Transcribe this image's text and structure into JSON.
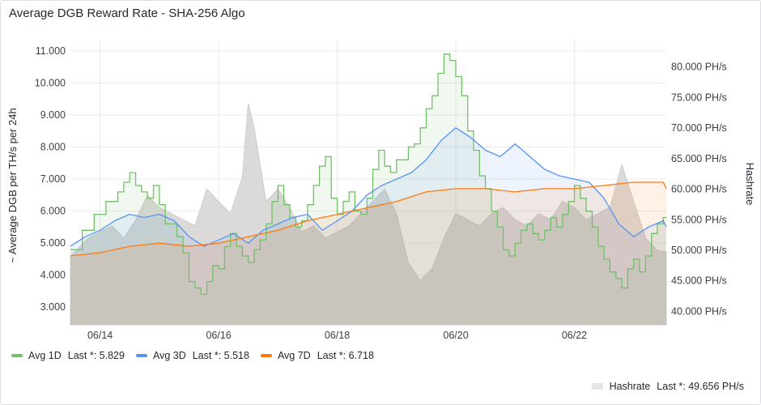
{
  "panel": {
    "title": "Average DGB Reward Rate - SHA-256 Algo"
  },
  "chart_data": {
    "type": "line",
    "title": "Average DGB Reward Rate - SHA-256 Algo",
    "ylabel": "~ Average DGB per TH/s per 24h",
    "y2label": "Hashrate",
    "xlim": [
      0,
      10.05
    ],
    "ylim": [
      2.45,
      11.3
    ],
    "y2lim": [
      37.8,
      84.2
    ],
    "x_ticks": [
      {
        "x": 0.5,
        "label": "06/14"
      },
      {
        "x": 2.5,
        "label": "06/16"
      },
      {
        "x": 4.5,
        "label": "06/18"
      },
      {
        "x": 6.5,
        "label": "06/20"
      },
      {
        "x": 8.5,
        "label": "06/22"
      }
    ],
    "y_ticks": [
      "3.000",
      "4.000",
      "5.000",
      "6.000",
      "7.000",
      "8.000",
      "9.000",
      "10.000",
      "11.000"
    ],
    "y2_ticks": [
      "40.000 PH/s",
      "45.000 PH/s",
      "50.000 PH/s",
      "55.000 PH/s",
      "60.000 PH/s",
      "65.000 PH/s",
      "70.000 PH/s",
      "75.000 PH/s",
      "80.000 PH/s"
    ],
    "x_unit": "days since 06/13 12:00",
    "series": [
      {
        "name": "Avg 1D",
        "axis": "left",
        "color": "#73bf69",
        "x": [
          0.0,
          0.2,
          0.4,
          0.6,
          0.8,
          0.9,
          1.0,
          1.1,
          1.2,
          1.3,
          1.4,
          1.5,
          1.6,
          1.7,
          1.8,
          1.9,
          2.0,
          2.1,
          2.2,
          2.3,
          2.4,
          2.5,
          2.6,
          2.7,
          2.8,
          2.9,
          3.0,
          3.1,
          3.2,
          3.3,
          3.4,
          3.5,
          3.6,
          3.7,
          3.8,
          3.9,
          4.0,
          4.1,
          4.2,
          4.3,
          4.4,
          4.5,
          4.6,
          4.7,
          4.8,
          4.9,
          5.0,
          5.1,
          5.2,
          5.3,
          5.4,
          5.5,
          5.6,
          5.7,
          5.8,
          5.9,
          6.0,
          6.1,
          6.2,
          6.3,
          6.4,
          6.5,
          6.6,
          6.7,
          6.8,
          6.9,
          7.0,
          7.1,
          7.2,
          7.3,
          7.4,
          7.5,
          7.6,
          7.7,
          7.8,
          7.9,
          8.0,
          8.1,
          8.2,
          8.3,
          8.4,
          8.5,
          8.6,
          8.7,
          8.8,
          8.9,
          9.0,
          9.1,
          9.2,
          9.3,
          9.4,
          9.5,
          9.6,
          9.7,
          9.8,
          9.9,
          10.0,
          10.05
        ],
        "y": [
          4.8,
          5.4,
          5.9,
          6.3,
          6.6,
          6.9,
          7.2,
          6.8,
          6.6,
          6.4,
          6.8,
          6.2,
          5.6,
          5.6,
          5.2,
          4.7,
          3.8,
          3.6,
          3.4,
          3.8,
          4.3,
          4.2,
          4.9,
          5.3,
          4.9,
          4.6,
          4.4,
          4.8,
          5.1,
          5.6,
          6.3,
          6.8,
          6.2,
          5.8,
          5.5,
          5.7,
          6.2,
          6.8,
          7.4,
          7.7,
          6.4,
          5.9,
          6.3,
          6.6,
          6.0,
          5.9,
          6.4,
          7.3,
          7.9,
          7.4,
          7.2,
          7.6,
          7.6,
          8.0,
          8.1,
          8.6,
          9.2,
          9.6,
          10.3,
          10.9,
          10.7,
          10.2,
          9.6,
          8.5,
          7.9,
          7.1,
          6.7,
          6.0,
          5.5,
          4.8,
          4.6,
          5.0,
          5.4,
          5.6,
          5.3,
          5.1,
          5.4,
          5.8,
          5.5,
          5.9,
          6.3,
          6.8,
          6.4,
          6.0,
          5.5,
          4.9,
          4.5,
          4.1,
          3.9,
          3.6,
          4.2,
          4.5,
          4.1,
          4.6,
          5.3,
          5.6,
          5.8,
          5.8
        ]
      },
      {
        "name": "Avg 3D",
        "axis": "left",
        "color": "#5794f2",
        "x": [
          0.0,
          0.25,
          0.5,
          0.75,
          1.0,
          1.25,
          1.5,
          1.75,
          2.0,
          2.25,
          2.5,
          2.75,
          3.0,
          3.25,
          3.5,
          3.75,
          4.0,
          4.25,
          4.5,
          4.75,
          5.0,
          5.25,
          5.5,
          5.75,
          6.0,
          6.25,
          6.5,
          6.75,
          7.0,
          7.25,
          7.5,
          7.75,
          8.0,
          8.25,
          8.5,
          8.75,
          9.0,
          9.25,
          9.5,
          9.75,
          10.0,
          10.05
        ],
        "y": [
          4.9,
          5.2,
          5.4,
          5.7,
          5.9,
          5.8,
          5.9,
          5.7,
          5.2,
          4.9,
          5.1,
          5.3,
          5.0,
          5.4,
          5.6,
          5.8,
          5.9,
          5.4,
          5.7,
          6.0,
          6.5,
          6.8,
          7.0,
          7.2,
          7.6,
          8.2,
          8.6,
          8.3,
          7.9,
          7.7,
          8.1,
          7.7,
          7.3,
          7.1,
          7.0,
          6.9,
          6.4,
          5.6,
          5.2,
          5.5,
          5.7,
          5.5
        ]
      },
      {
        "name": "Avg 7D",
        "axis": "left",
        "color": "#ff780a",
        "x": [
          0.0,
          0.5,
          1.0,
          1.5,
          2.0,
          2.5,
          3.0,
          3.5,
          4.0,
          4.5,
          5.0,
          5.5,
          6.0,
          6.5,
          7.0,
          7.5,
          8.0,
          8.5,
          9.0,
          9.5,
          10.0,
          10.05
        ],
        "y": [
          4.6,
          4.7,
          4.9,
          5.0,
          4.9,
          5.0,
          5.2,
          5.4,
          5.7,
          5.9,
          6.1,
          6.3,
          6.6,
          6.7,
          6.7,
          6.6,
          6.7,
          6.7,
          6.8,
          6.9,
          6.9,
          6.7
        ]
      },
      {
        "name": "Hashrate",
        "axis": "right",
        "color": "#d6d4d2",
        "x": [
          0.0,
          0.3,
          0.5,
          0.7,
          0.9,
          1.1,
          1.3,
          1.5,
          1.7,
          1.9,
          2.1,
          2.3,
          2.5,
          2.7,
          2.9,
          3.0,
          3.1,
          3.3,
          3.5,
          3.7,
          3.9,
          4.1,
          4.3,
          4.5,
          4.7,
          4.9,
          5.1,
          5.3,
          5.5,
          5.7,
          5.9,
          6.1,
          6.3,
          6.5,
          6.7,
          6.9,
          7.1,
          7.3,
          7.5,
          7.7,
          7.9,
          8.1,
          8.3,
          8.5,
          8.7,
          8.9,
          9.1,
          9.3,
          9.5,
          9.7,
          9.9,
          10.05
        ],
        "y": [
          49.0,
          52.0,
          53.0,
          54.0,
          52.0,
          55.0,
          59.0,
          57.0,
          56.0,
          55.0,
          54.0,
          60.0,
          58.0,
          56.0,
          62.0,
          74.0,
          70.0,
          58.0,
          60.0,
          57.0,
          53.0,
          54.0,
          52.0,
          53.0,
          54.0,
          56.0,
          58.0,
          60.0,
          56.0,
          48.0,
          45.0,
          47.0,
          52.0,
          56.0,
          55.0,
          54.0,
          56.0,
          57.0,
          55.0,
          54.0,
          56.0,
          55.0,
          58.0,
          57.0,
          55.0,
          56.0,
          57.0,
          64.0,
          58.0,
          52.0,
          50.0,
          49.7
        ]
      }
    ]
  },
  "legend": {
    "avg1d": {
      "name": "Avg 1D",
      "last": "Last *: 5.829",
      "color": "#73bf69"
    },
    "avg3d": {
      "name": "Avg 3D",
      "last": "Last *: 5.518",
      "color": "#5794f2"
    },
    "avg7d": {
      "name": "Avg 7D",
      "last": "Last *: 6.718",
      "color": "#ff780a"
    },
    "hashrate": {
      "name": "Hashrate",
      "last": "Last *: 49.656 PH/s",
      "color": "#e6e6e6"
    }
  }
}
